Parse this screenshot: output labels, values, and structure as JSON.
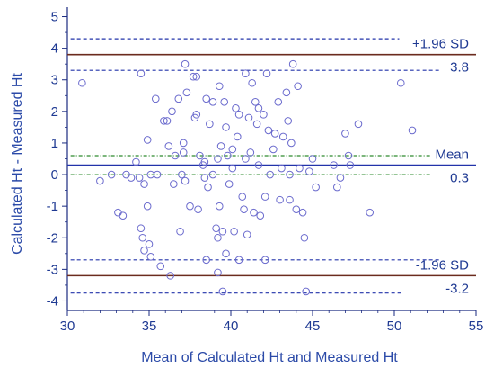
{
  "chart_data": {
    "type": "scatter",
    "title": "",
    "xlabel": "Mean of Calculated Ht and Measured Ht",
    "ylabel": "Calculated Ht - Measured Ht",
    "xlim": [
      30,
      55
    ],
    "ylim": [
      -4.3,
      5.3
    ],
    "xticks": [
      30,
      35,
      40,
      45,
      50,
      55
    ],
    "yticks": [
      -4,
      -3,
      -2,
      -1,
      0,
      1,
      2,
      3,
      4,
      5
    ],
    "x_tick_labels": [
      "30",
      "35",
      "40",
      "45",
      "50",
      "55"
    ],
    "y_tick_labels": [
      "-4",
      "-3",
      "-2",
      "-1",
      "0",
      "1",
      "2",
      "3",
      "4",
      "5"
    ],
    "grid": false,
    "colors": {
      "points": "#6a6acd",
      "mean_line": "#2233aa",
      "limit_line": "#6b2b1e",
      "ci_blue": "#2233aa",
      "ci_green": "#2e8b2e",
      "axis": "#1a2a80"
    },
    "reference_lines": [
      {
        "id": "upper-loa",
        "y": 3.8,
        "label_left": "+1.96 SD",
        "label_right": "3.8"
      },
      {
        "id": "mean",
        "y": 0.3,
        "label_left": "Mean",
        "label_right": "0.3"
      },
      {
        "id": "lower-loa",
        "y": -3.2,
        "label_left": "-1.96 SD",
        "label_right": "-3.2"
      }
    ],
    "ci_bands": [
      {
        "y_low": 3.3,
        "y_high": 4.3,
        "color": "ci_blue"
      },
      {
        "y_low": 0.0,
        "y_high": 0.6,
        "color": "ci_green"
      },
      {
        "y_low": -3.75,
        "y_high": -2.7,
        "color": "ci_blue"
      }
    ],
    "points": [
      [
        30.9,
        2.9
      ],
      [
        32.0,
        -0.2
      ],
      [
        32.7,
        0.0
      ],
      [
        33.1,
        -1.2
      ],
      [
        33.4,
        -1.3
      ],
      [
        33.6,
        0.0
      ],
      [
        33.9,
        -0.1
      ],
      [
        34.2,
        0.4
      ],
      [
        34.5,
        3.2
      ],
      [
        34.4,
        -0.1
      ],
      [
        34.5,
        -1.7
      ],
      [
        34.6,
        -2.0
      ],
      [
        34.7,
        -2.4
      ],
      [
        34.7,
        -0.3
      ],
      [
        34.9,
        1.1
      ],
      [
        34.9,
        -1.0
      ],
      [
        35.0,
        -2.2
      ],
      [
        35.1,
        0.0
      ],
      [
        35.1,
        -2.6
      ],
      [
        35.4,
        2.4
      ],
      [
        35.5,
        0.0
      ],
      [
        35.7,
        -2.9
      ],
      [
        35.9,
        1.7
      ],
      [
        36.1,
        1.7
      ],
      [
        36.3,
        -3.2
      ],
      [
        36.2,
        0.9
      ],
      [
        36.4,
        2.0
      ],
      [
        36.5,
        -0.3
      ],
      [
        36.6,
        0.6
      ],
      [
        36.8,
        2.4
      ],
      [
        37.0,
        0.0
      ],
      [
        37.1,
        0.7
      ],
      [
        37.2,
        3.5
      ],
      [
        37.1,
        1.0
      ],
      [
        37.3,
        2.6
      ],
      [
        37.2,
        -0.2
      ],
      [
        37.5,
        -1.0
      ],
      [
        36.9,
        -1.8
      ],
      [
        37.7,
        3.1
      ],
      [
        37.9,
        3.1
      ],
      [
        37.8,
        1.8
      ],
      [
        37.9,
        1.9
      ],
      [
        38.0,
        -1.1
      ],
      [
        38.1,
        0.6
      ],
      [
        38.3,
        0.3
      ],
      [
        38.4,
        -0.1
      ],
      [
        38.5,
        2.4
      ],
      [
        38.4,
        0.4
      ],
      [
        38.5,
        -2.7
      ],
      [
        38.6,
        -0.4
      ],
      [
        38.7,
        1.6
      ],
      [
        38.9,
        2.3
      ],
      [
        38.9,
        0.0
      ],
      [
        39.1,
        -1.7
      ],
      [
        39.2,
        -2.0
      ],
      [
        39.3,
        2.8
      ],
      [
        39.2,
        0.5
      ],
      [
        39.3,
        -1.0
      ],
      [
        39.4,
        0.9
      ],
      [
        39.5,
        -1.8
      ],
      [
        39.6,
        2.3
      ],
      [
        39.7,
        1.5
      ],
      [
        39.8,
        0.6
      ],
      [
        39.7,
        -2.5
      ],
      [
        39.9,
        -0.3
      ],
      [
        40.1,
        0.8
      ],
      [
        40.2,
        -1.8
      ],
      [
        40.1,
        0.2
      ],
      [
        40.3,
        2.1
      ],
      [
        40.4,
        1.2
      ],
      [
        40.5,
        1.9
      ],
      [
        40.5,
        -2.7
      ],
      [
        40.7,
        -0.7
      ],
      [
        40.8,
        -1.1
      ],
      [
        40.9,
        3.2
      ],
      [
        40.9,
        0.5
      ],
      [
        41.0,
        -1.9
      ],
      [
        41.1,
        1.8
      ],
      [
        41.2,
        0.7
      ],
      [
        41.3,
        2.9
      ],
      [
        41.4,
        -1.2
      ],
      [
        41.5,
        2.3
      ],
      [
        41.6,
        1.6
      ],
      [
        41.7,
        2.1
      ],
      [
        41.7,
        0.3
      ],
      [
        41.8,
        -1.3
      ],
      [
        42.0,
        1.9
      ],
      [
        42.1,
        -0.7
      ],
      [
        42.2,
        3.2
      ],
      [
        42.1,
        -2.7
      ],
      [
        42.3,
        1.4
      ],
      [
        42.4,
        0.0
      ],
      [
        42.6,
        0.8
      ],
      [
        42.7,
        1.3
      ],
      [
        42.9,
        2.3
      ],
      [
        43.1,
        0.2
      ],
      [
        43.0,
        -0.8
      ],
      [
        43.2,
        1.2
      ],
      [
        43.4,
        2.6
      ],
      [
        43.5,
        1.7
      ],
      [
        43.6,
        0.0
      ],
      [
        43.8,
        3.5
      ],
      [
        43.7,
        1.0
      ],
      [
        44.0,
        -1.1
      ],
      [
        44.1,
        2.8
      ],
      [
        44.2,
        0.2
      ],
      [
        44.4,
        -1.2
      ],
      [
        44.5,
        -2.0
      ],
      [
        44.6,
        -3.7
      ],
      [
        44.8,
        0.1
      ],
      [
        45.0,
        0.5
      ],
      [
        45.2,
        -0.4
      ],
      [
        46.3,
        0.3
      ],
      [
        46.5,
        -0.4
      ],
      [
        46.7,
        -0.1
      ],
      [
        47.0,
        1.3
      ],
      [
        47.2,
        0.6
      ],
      [
        47.3,
        0.3
      ],
      [
        47.8,
        1.6
      ],
      [
        48.5,
        -1.2
      ],
      [
        50.4,
        2.9
      ],
      [
        51.1,
        1.4
      ],
      [
        39.5,
        -3.7
      ],
      [
        39.2,
        -3.1
      ],
      [
        43.6,
        -0.8
      ]
    ]
  }
}
